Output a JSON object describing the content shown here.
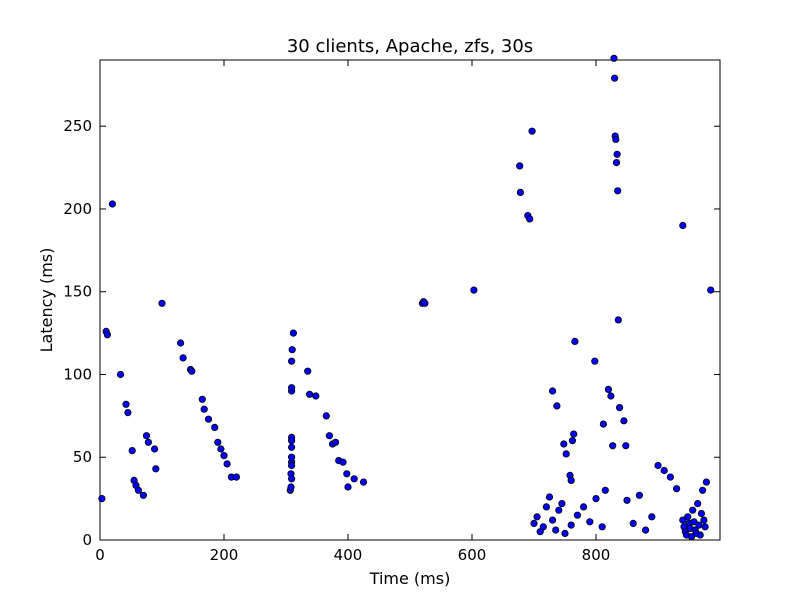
{
  "chart_data": {
    "type": "scatter",
    "title": "30 clients, Apache, zfs, 30s",
    "xlabel": "Time (ms)",
    "ylabel": "Latency (ms)",
    "xlim": [
      0,
      1000
    ],
    "ylim": [
      0,
      290
    ],
    "xticks": [
      0,
      200,
      400,
      600,
      800
    ],
    "yticks": [
      0,
      50,
      100,
      150,
      200,
      250
    ],
    "xtick_labels": [
      "0",
      "200",
      "400",
      "600",
      "800"
    ],
    "ytick_labels": [
      "0",
      "50",
      "100",
      "150",
      "200",
      "250"
    ],
    "grid": false,
    "legend": "none",
    "marker_color": "#0000ff",
    "marker_edge": "#000000",
    "series": [
      {
        "x": [
          3,
          10,
          12,
          20,
          33,
          42,
          45,
          52,
          55,
          58,
          62,
          70,
          75,
          78,
          88,
          90,
          100,
          130,
          134,
          146,
          148,
          165,
          168,
          175,
          185,
          190,
          195,
          200,
          205,
          212,
          220,
          307,
          308,
          308,
          309,
          309,
          309,
          309,
          309,
          309,
          309,
          309,
          309,
          309,
          310,
          312,
          335,
          338,
          348,
          365,
          370,
          375,
          380,
          385,
          392,
          398,
          400,
          410,
          425,
          520,
          522,
          524,
          603,
          677,
          678,
          690,
          693,
          697,
          730,
          737,
          748,
          752,
          758,
          760,
          762,
          764,
          766,
          798,
          812,
          820,
          824,
          827,
          829,
          830,
          831,
          832,
          833,
          834,
          835,
          836,
          838,
          845,
          848,
          940,
          985
        ],
        "y": [
          25,
          126,
          124,
          203,
          100,
          82,
          77,
          54,
          36,
          33,
          30,
          27,
          63,
          59,
          55,
          43,
          143,
          119,
          110,
          103,
          102,
          85,
          79,
          73,
          68,
          59,
          55,
          51,
          46,
          38,
          38,
          30,
          32,
          40,
          47,
          50,
          56,
          62,
          37,
          45,
          60,
          90,
          92,
          108,
          115,
          125,
          102,
          88,
          87,
          75,
          63,
          58,
          59,
          48,
          47,
          40,
          32,
          37,
          35,
          143,
          144,
          143,
          151,
          226,
          210,
          196,
          194,
          247,
          90,
          81,
          58,
          52,
          39,
          36,
          60,
          64,
          120,
          108,
          70,
          91,
          87,
          57,
          291,
          279,
          244,
          242,
          228,
          233,
          211,
          133,
          80,
          72,
          57,
          190,
          151
        ]
      },
      {
        "x": [
          940,
          942,
          944,
          946,
          948,
          950,
          952,
          954,
          956,
          958,
          960,
          962,
          964,
          966,
          968,
          970,
          972,
          974,
          976,
          978
        ],
        "y": [
          12,
          8,
          5,
          3,
          14,
          10,
          7,
          2,
          18,
          11,
          6,
          4,
          22,
          9,
          3,
          16,
          30,
          12,
          8,
          35
        ]
      },
      {
        "x": [
          700,
          705,
          710,
          715,
          720,
          725,
          730,
          735,
          740,
          745,
          750,
          760,
          770,
          780,
          790,
          800,
          810,
          815,
          850,
          860,
          870,
          880,
          890,
          900,
          910,
          920,
          930
        ],
        "y": [
          10,
          14,
          5,
          8,
          20,
          26,
          12,
          6,
          18,
          22,
          4,
          9,
          15,
          20,
          11,
          25,
          8,
          30,
          24,
          10,
          27,
          6,
          14,
          45,
          42,
          38,
          31
        ]
      }
    ]
  }
}
